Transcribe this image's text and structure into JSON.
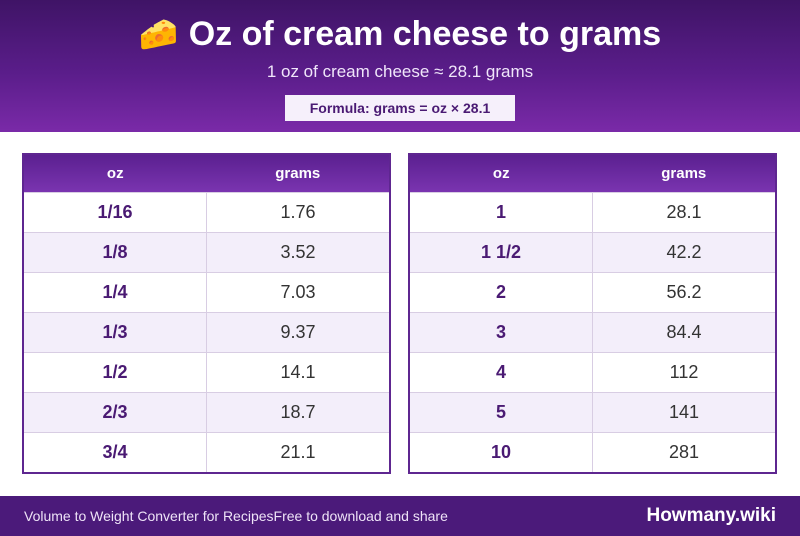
{
  "header": {
    "emoji": "🧀",
    "title": "Oz of cream cheese to grams",
    "subtitle": "1 oz of cream cheese ≈ 28.1 grams",
    "formula": "Formula: grams = oz × 28.1"
  },
  "columns": {
    "oz": "oz",
    "grams": "grams"
  },
  "left_table": [
    {
      "oz": "1/16",
      "grams": "1.76"
    },
    {
      "oz": "1/8",
      "grams": "3.52"
    },
    {
      "oz": "1/4",
      "grams": "7.03"
    },
    {
      "oz": "1/3",
      "grams": "9.37"
    },
    {
      "oz": "1/2",
      "grams": "14.1"
    },
    {
      "oz": "2/3",
      "grams": "18.7"
    },
    {
      "oz": "3/4",
      "grams": "21.1"
    }
  ],
  "right_table": [
    {
      "oz": "1",
      "grams": "28.1"
    },
    {
      "oz": "1 1/2",
      "grams": "42.2"
    },
    {
      "oz": "2",
      "grams": "56.2"
    },
    {
      "oz": "3",
      "grams": "84.4"
    },
    {
      "oz": "4",
      "grams": "112"
    },
    {
      "oz": "5",
      "grams": "141"
    },
    {
      "oz": "10",
      "grams": "281"
    }
  ],
  "footer": {
    "description": "Volume to Weight Converter for RecipesFree to download and share",
    "brand": "Howmany.wiki"
  },
  "colors": {
    "header_dark": "#3f1466",
    "header_light": "#7a2aa8",
    "accent_text": "#4a1a73",
    "row_alt": "#f3eefa",
    "footer_bg": "#4b1a7a"
  }
}
